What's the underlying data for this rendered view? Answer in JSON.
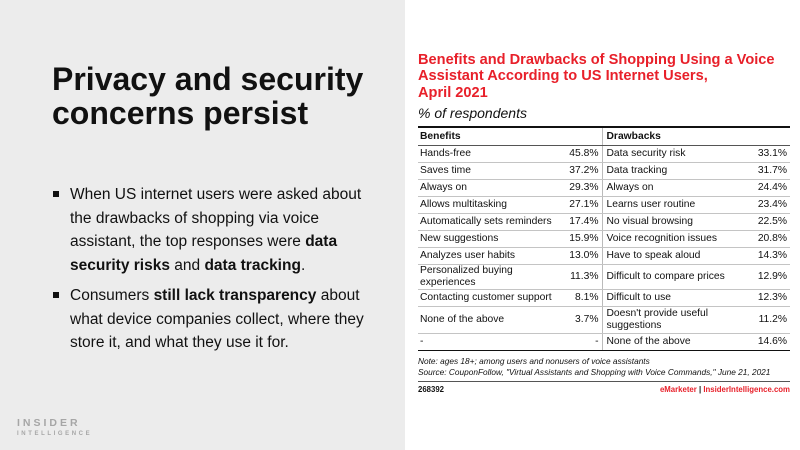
{
  "slide": {
    "title": "Privacy and security concerns persist",
    "bullets": [
      {
        "parts": [
          "When US internet users were asked about the drawbacks of shopping via voice assistant, the top responses were ",
          "data security risks",
          " and ",
          "data tracking",
          "."
        ]
      },
      {
        "parts": [
          "Consumers ",
          "still lack transparency",
          " about what device companies collect, where they store it, and what they use it for."
        ]
      }
    ],
    "logo": {
      "line1": "INSIDER",
      "line2": "INTELLIGENCE"
    }
  },
  "chart": {
    "title_lines": [
      "Benefits and Drawbacks of Shopping Using a Voice",
      "Assistant According to US Internet Users,",
      "April 2021"
    ],
    "subtitle": "% of respondents",
    "headers": {
      "benefits": "Benefits",
      "drawbacks": "Drawbacks"
    },
    "rows": [
      {
        "benefit": "Hands-free",
        "b_pct": "45.8%",
        "drawback": "Data security risk",
        "d_pct": "33.1%"
      },
      {
        "benefit": "Saves time",
        "b_pct": "37.2%",
        "drawback": "Data tracking",
        "d_pct": "31.7%"
      },
      {
        "benefit": "Always on",
        "b_pct": "29.3%",
        "drawback": "Always on",
        "d_pct": "24.4%"
      },
      {
        "benefit": "Allows multitasking",
        "b_pct": "27.1%",
        "drawback": "Learns user routine",
        "d_pct": "23.4%"
      },
      {
        "benefit": "Automatically sets reminders",
        "b_pct": "17.4%",
        "drawback": "No visual browsing",
        "d_pct": "22.5%"
      },
      {
        "benefit": "New suggestions",
        "b_pct": "15.9%",
        "drawback": "Voice recognition issues",
        "d_pct": "20.8%"
      },
      {
        "benefit": "Analyzes user habits",
        "b_pct": "13.0%",
        "drawback": "Have to speak aloud",
        "d_pct": "14.3%"
      },
      {
        "benefit": "Personalized buying experiences",
        "b_pct": "11.3%",
        "drawback": "Difficult to compare prices",
        "d_pct": "12.9%"
      },
      {
        "benefit": "Contacting customer support",
        "b_pct": "8.1%",
        "drawback": "Difficult to use",
        "d_pct": "12.3%"
      },
      {
        "benefit": "None of the above",
        "b_pct": "3.7%",
        "drawback": "Doesn't provide useful suggestions",
        "d_pct": "11.2%"
      },
      {
        "benefit": "-",
        "b_pct": "-",
        "drawback": "None of the above",
        "d_pct": "14.6%"
      }
    ],
    "note": "Note: ages 18+; among users and nonusers of voice assistants",
    "source": "Source: CouponFollow, \"Virtual Assistants and Shopping with Voice Commands,\" June 21, 2021",
    "footer": {
      "id": "268392",
      "brand_left": "eMarketer",
      "separator": "|",
      "brand_right": "InsiderIntelligence.com"
    }
  },
  "colors": {
    "accent": "#e8202a",
    "panel_bg": "#ececec",
    "text": "#111111"
  }
}
